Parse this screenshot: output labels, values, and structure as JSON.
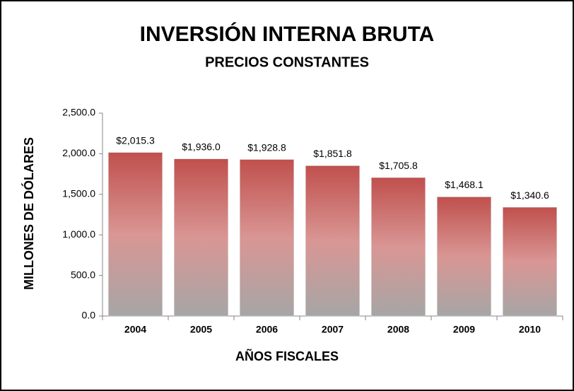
{
  "chart_data": {
    "type": "bar",
    "title": "INVERSIÓN INTERNA BRUTA",
    "subtitle": "PRECIOS CONSTANTES",
    "x_label": "AÑOS FISCALES",
    "y_label": "MILLONES DE DÓLARES",
    "categories": [
      "2004",
      "2005",
      "2006",
      "2007",
      "2008",
      "2009",
      "2010"
    ],
    "values": [
      2015.3,
      1936.0,
      1928.8,
      1851.8,
      1705.8,
      1468.1,
      1340.6
    ],
    "value_labels": [
      "$2,015.3",
      "$1,936.0",
      "$1,928.8",
      "$1,851.8",
      "$1,705.8",
      "$1,468.1",
      "$1,340.6"
    ],
    "colors": [
      "#c0504d",
      "#d99694",
      "#a6a6a6"
    ],
    "ylim": [
      0,
      2500
    ],
    "yticks": [
      {
        "value": 0,
        "label": "0.0"
      },
      {
        "value": 500,
        "label": "500.0"
      },
      {
        "value": 1000,
        "label": "1,000.0"
      },
      {
        "value": 1500,
        "label": "1,500.0"
      },
      {
        "value": 2000,
        "label": "2,000.0"
      },
      {
        "value": 2500,
        "label": "2,500.0"
      }
    ],
    "grid": false
  }
}
